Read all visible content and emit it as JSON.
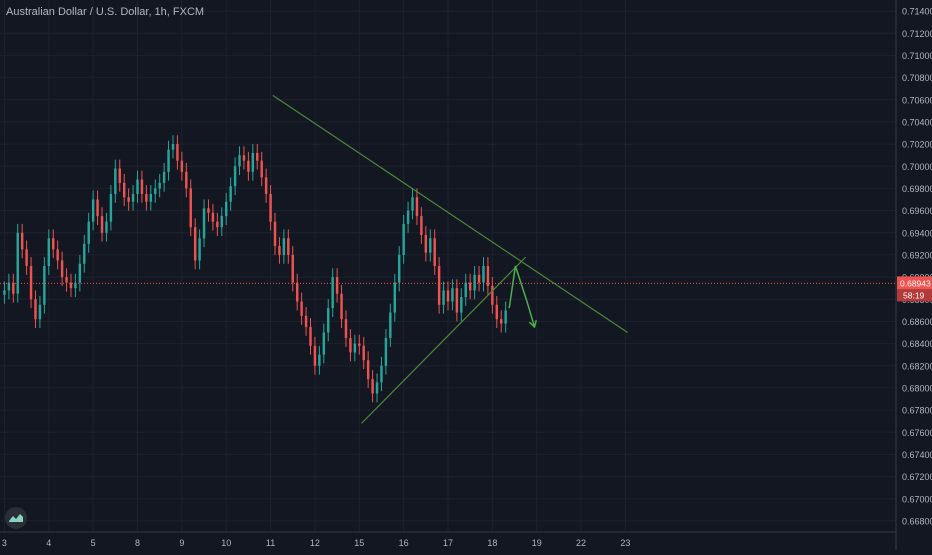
{
  "header": {
    "symbol_title": "Australian Dollar / U.S. Dollar, 1h, FXCM"
  },
  "colors": {
    "background": "#131722",
    "up": "#26a69a",
    "down": "#ef5350",
    "trendline": "#4a8a3a",
    "projection": "#4caf50",
    "price_line": "#ef5350",
    "axis_text": "#b2b5be",
    "grid": "#1e222d"
  },
  "icons": {
    "logo": "tradingview-logo-icon"
  },
  "chart_data": {
    "type": "candlestick",
    "y_axis": {
      "ylim": [
        0.667,
        0.715
      ],
      "ticks": [
        "0.71400",
        "0.71200",
        "0.71000",
        "0.70800",
        "0.70600",
        "0.70400",
        "0.70200",
        "0.70000",
        "0.69800",
        "0.69600",
        "0.69400",
        "0.69200",
        "0.69000",
        "0.68800",
        "0.68600",
        "0.68400",
        "0.68200",
        "0.68000",
        "0.67800",
        "0.67600",
        "0.67400",
        "0.67200",
        "0.67000",
        "0.66800"
      ],
      "tick_values": [
        0.714,
        0.712,
        0.71,
        0.708,
        0.706,
        0.704,
        0.702,
        0.7,
        0.698,
        0.696,
        0.694,
        0.692,
        0.69,
        0.688,
        0.686,
        0.684,
        0.682,
        0.68,
        0.678,
        0.676,
        0.674,
        0.672,
        0.67,
        0.668
      ]
    },
    "x_axis": {
      "xlim": [
        2.9,
        23.1
      ],
      "ticks": [
        "3",
        "4",
        "5",
        "8",
        "9",
        "10",
        "11",
        "12",
        "15",
        "16",
        "17",
        "18",
        "19",
        "22",
        "23"
      ],
      "tick_positions": [
        3,
        4,
        5,
        6,
        7,
        8,
        9,
        10,
        11,
        12,
        13,
        14,
        15,
        16,
        17
      ]
    },
    "current_price": {
      "value": 0.68943,
      "label": "0.68943",
      "countdown": "58:19"
    },
    "close_series": [
      [
        3.0,
        0.6888
      ],
      [
        3.1,
        0.6895
      ],
      [
        3.2,
        0.6885
      ],
      [
        3.3,
        0.694
      ],
      [
        3.4,
        0.6925
      ],
      [
        3.5,
        0.691
      ],
      [
        3.6,
        0.688
      ],
      [
        3.7,
        0.6862
      ],
      [
        3.8,
        0.6875
      ],
      [
        3.9,
        0.691
      ],
      [
        4.0,
        0.6935
      ],
      [
        4.1,
        0.6925
      ],
      [
        4.2,
        0.6915
      ],
      [
        4.3,
        0.69
      ],
      [
        4.4,
        0.6895
      ],
      [
        4.5,
        0.689
      ],
      [
        4.6,
        0.6895
      ],
      [
        4.7,
        0.6912
      ],
      [
        4.8,
        0.693
      ],
      [
        4.9,
        0.695
      ],
      [
        5.0,
        0.697
      ],
      [
        5.1,
        0.6955
      ],
      [
        5.2,
        0.694
      ],
      [
        5.3,
        0.695
      ],
      [
        5.4,
        0.6975
      ],
      [
        5.5,
        0.6998
      ],
      [
        5.6,
        0.6985
      ],
      [
        5.7,
        0.6972
      ],
      [
        5.8,
        0.6968
      ],
      [
        5.9,
        0.6975
      ],
      [
        6.0,
        0.6988
      ],
      [
        6.1,
        0.6975
      ],
      [
        6.2,
        0.6968
      ],
      [
        6.3,
        0.6975
      ],
      [
        6.4,
        0.698
      ],
      [
        6.5,
        0.6985
      ],
      [
        6.6,
        0.6995
      ],
      [
        6.7,
        0.7015
      ],
      [
        6.8,
        0.702
      ],
      [
        6.9,
        0.7005
      ],
      [
        7.0,
        0.6995
      ],
      [
        7.1,
        0.698
      ],
      [
        7.2,
        0.6945
      ],
      [
        7.3,
        0.6915
      ],
      [
        7.4,
        0.6935
      ],
      [
        7.5,
        0.6962
      ],
      [
        7.6,
        0.6958
      ],
      [
        7.7,
        0.695
      ],
      [
        7.8,
        0.6945
      ],
      [
        7.9,
        0.6955
      ],
      [
        8.0,
        0.6968
      ],
      [
        8.1,
        0.6982
      ],
      [
        8.2,
        0.7
      ],
      [
        8.3,
        0.701
      ],
      [
        8.4,
        0.7005
      ],
      [
        8.5,
        0.6995
      ],
      [
        8.6,
        0.7012
      ],
      [
        8.7,
        0.7005
      ],
      [
        8.8,
        0.699
      ],
      [
        8.9,
        0.6975
      ],
      [
        9.0,
        0.695
      ],
      [
        9.1,
        0.6928
      ],
      [
        9.2,
        0.692
      ],
      [
        9.3,
        0.6935
      ],
      [
        9.4,
        0.692
      ],
      [
        9.5,
        0.6895
      ],
      [
        9.6,
        0.6878
      ],
      [
        9.7,
        0.6865
      ],
      [
        9.8,
        0.6855
      ],
      [
        9.9,
        0.6838
      ],
      [
        10.0,
        0.682
      ],
      [
        10.1,
        0.683
      ],
      [
        10.2,
        0.685
      ],
      [
        10.3,
        0.6872
      ],
      [
        10.4,
        0.69
      ],
      [
        10.5,
        0.6885
      ],
      [
        10.6,
        0.6862
      ],
      [
        10.7,
        0.6845
      ],
      [
        10.8,
        0.6832
      ],
      [
        10.9,
        0.684
      ],
      [
        11.0,
        0.6838
      ],
      [
        11.1,
        0.6825
      ],
      [
        11.2,
        0.6808
      ],
      [
        11.3,
        0.6795
      ],
      [
        11.4,
        0.6805
      ],
      [
        11.5,
        0.682
      ],
      [
        11.6,
        0.6845
      ],
      [
        11.7,
        0.6868
      ],
      [
        11.8,
        0.6895
      ],
      [
        11.9,
        0.692
      ],
      [
        12.0,
        0.6948
      ],
      [
        12.1,
        0.696
      ],
      [
        12.2,
        0.6972
      ],
      [
        12.3,
        0.6955
      ],
      [
        12.4,
        0.6938
      ],
      [
        12.5,
        0.6922
      ],
      [
        12.6,
        0.6935
      ],
      [
        12.7,
        0.691
      ],
      [
        12.8,
        0.6875
      ],
      [
        12.9,
        0.6888
      ],
      [
        13.0,
        0.6878
      ],
      [
        13.1,
        0.689
      ],
      [
        13.2,
        0.6868
      ],
      [
        13.3,
        0.6882
      ],
      [
        13.4,
        0.6895
      ],
      [
        13.5,
        0.6888
      ],
      [
        13.6,
        0.6902
      ],
      [
        13.7,
        0.6895
      ],
      [
        13.8,
        0.691
      ],
      [
        13.9,
        0.6892
      ],
      [
        14.0,
        0.6875
      ],
      [
        14.1,
        0.6862
      ],
      [
        14.2,
        0.6858
      ],
      [
        14.3,
        0.687
      ]
    ],
    "drawings": {
      "descending_trendline": {
        "from": [
          9.05,
          0.7064
        ],
        "to": [
          17.05,
          0.685
        ]
      },
      "ascending_trendline": {
        "from": [
          11.05,
          0.6768
        ],
        "to": [
          14.75,
          0.6918
        ]
      },
      "projection_path": [
        [
          14.38,
          0.6872
        ],
        [
          14.52,
          0.691
        ],
        [
          14.78,
          0.6878
        ],
        [
          14.95,
          0.6855
        ]
      ]
    },
    "title": "Australian Dollar / U.S. Dollar, 1h, FXCM",
    "xlabel": "",
    "ylabel": "",
    "grid": true,
    "legend": "none"
  }
}
